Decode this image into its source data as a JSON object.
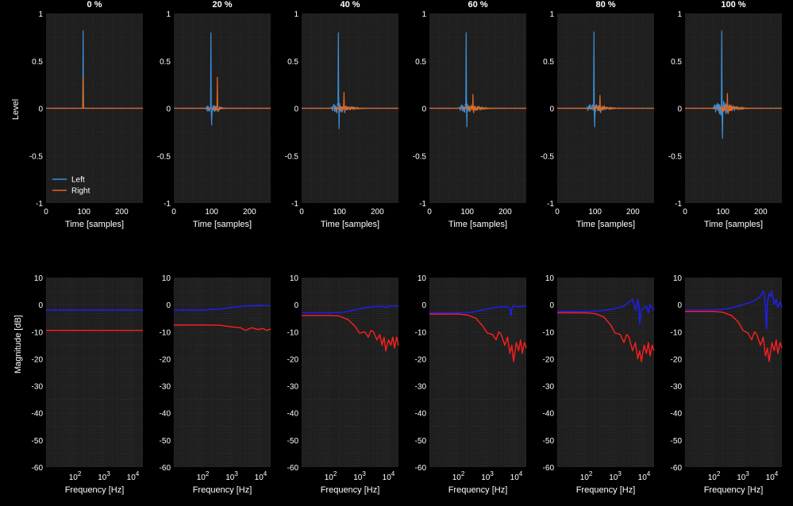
{
  "figure": {
    "background": "#000000",
    "axes_background": "#1f1f1f",
    "grid_color": "#3a3a3a",
    "text_color": "#ffffff",
    "panel_titles": [
      "0 %",
      "20 %",
      "40 %",
      "60 %",
      "80 %",
      "100 %"
    ]
  },
  "chart_data": [
    {
      "type": "line",
      "row": "impulse",
      "ylabel": "Level",
      "xlabel": "Time [samples]",
      "xlim": [
        0,
        256
      ],
      "ylim": [
        -1,
        1
      ],
      "xticks": [
        0,
        100,
        200
      ],
      "yticks": [
        -1,
        -0.5,
        0,
        0.5,
        1
      ],
      "ytick_labels": [
        "-1",
        "-0.5",
        "0",
        "0.5",
        "1"
      ],
      "legend": {
        "placement": "lower-left",
        "entries": [
          "Left",
          "Right"
        ]
      },
      "series_colors": {
        "Left": "#3a8fd8",
        "Right": "#e8671b"
      },
      "panels": [
        {
          "title": "0 %",
          "series": [
            {
              "name": "Left",
              "peak_at": 98,
              "peak": 0.82,
              "neg": 0.0,
              "ringing": 0.0,
              "ring_len": 0
            },
            {
              "name": "Right",
              "peak_at": 98,
              "peak": 0.33,
              "neg": 0.0,
              "ringing": 0.0,
              "ring_len": 0
            }
          ]
        },
        {
          "title": "20 %",
          "series": [
            {
              "name": "Left",
              "peak_at": 98,
              "peak": 0.8,
              "neg": -0.18,
              "ringing": 0.07,
              "ring_len": 40
            },
            {
              "name": "Right",
              "peak_at": 115,
              "peak": 0.33,
              "neg": -0.04,
              "ringing": 0.03,
              "ring_len": 20
            }
          ]
        },
        {
          "title": "40 %",
          "series": [
            {
              "name": "Left",
              "peak_at": 97,
              "peak": 0.8,
              "neg": -0.22,
              "ringing": 0.08,
              "ring_len": 55
            },
            {
              "name": "Right",
              "peak_at": 112,
              "peak": 0.17,
              "neg": -0.05,
              "ringing": 0.04,
              "ring_len": 60
            }
          ]
        },
        {
          "title": "60 %",
          "series": [
            {
              "name": "Left",
              "peak_at": 97,
              "peak": 0.8,
              "neg": -0.2,
              "ringing": 0.07,
              "ring_len": 55
            },
            {
              "name": "Right",
              "peak_at": 115,
              "peak": 0.15,
              "neg": -0.05,
              "ringing": 0.04,
              "ring_len": 60
            }
          ]
        },
        {
          "title": "80 %",
          "series": [
            {
              "name": "Left",
              "peak_at": 97,
              "peak": 0.81,
              "neg": -0.2,
              "ringing": 0.07,
              "ring_len": 55
            },
            {
              "name": "Right",
              "peak_at": 113,
              "peak": 0.14,
              "neg": -0.05,
              "ringing": 0.04,
              "ring_len": 60
            }
          ]
        },
        {
          "title": "100 %",
          "series": [
            {
              "name": "Left",
              "peak_at": 97,
              "peak": 0.82,
              "neg": -0.32,
              "ringing": 0.1,
              "ring_len": 65
            },
            {
              "name": "Right",
              "peak_at": 112,
              "peak": 0.16,
              "neg": -0.06,
              "ringing": 0.05,
              "ring_len": 60
            }
          ]
        }
      ]
    },
    {
      "type": "line",
      "row": "magnitude",
      "ylabel": "Magnitude [dB]",
      "xlabel": "Frequency [Hz]",
      "xscale": "log",
      "xlim": [
        10,
        22050
      ],
      "ylim": [
        -60,
        10
      ],
      "xticks": [
        100,
        1000,
        10000
      ],
      "xtick_labels": [
        [
          "10",
          "2"
        ],
        [
          "10",
          "3"
        ],
        [
          "10",
          "4"
        ]
      ],
      "yticks": [
        10,
        0,
        -10,
        -20,
        -30,
        -40,
        -50,
        -60
      ],
      "series_colors": {
        "Left": "#1f1fff",
        "Right": "#ff1f1f"
      },
      "panels": [
        {
          "title": "0 %",
          "series": [
            {
              "name": "Left",
              "x": [
                10,
                22050
              ],
              "y": [
                -2,
                -2
              ]
            },
            {
              "name": "Right",
              "x": [
                10,
                22050
              ],
              "y": [
                -9.5,
                -9.5
              ]
            }
          ]
        },
        {
          "title": "20 %",
          "series": [
            {
              "name": "Left",
              "x": [
                10,
                100,
                500,
                1000,
                3000,
                10000,
                22050
              ],
              "y": [
                -2,
                -2,
                -1.5,
                -1,
                -0.5,
                -0.3,
                -0.5
              ]
            },
            {
              "name": "Right",
              "x": [
                10,
                100,
                400,
                1000,
                2000,
                3000,
                5000,
                8000,
                12000,
                16000,
                22050
              ],
              "y": [
                -7.5,
                -7.5,
                -7.6,
                -8.2,
                -8.5,
                -9.5,
                -8.5,
                -9.2,
                -8.8,
                -9.5,
                -9
              ]
            }
          ]
        },
        {
          "title": "40 %",
          "series": [
            {
              "name": "Left",
              "x": [
                10,
                100,
                300,
                1000,
                2000,
                3000,
                5000,
                8000,
                12000,
                22050
              ],
              "y": [
                -3,
                -3,
                -2.8,
                -1.5,
                -1,
                -0.8,
                -0.5,
                -1,
                -0.5,
                -0.5
              ]
            },
            {
              "name": "Right",
              "x": [
                10,
                100,
                200,
                400,
                700,
                1000,
                1500,
                2000,
                2500,
                3000,
                4000,
                5000,
                6000,
                7000,
                8000,
                10000,
                12000,
                14000,
                16000,
                19000,
                22050
              ],
              "y": [
                -4,
                -4,
                -4.2,
                -5.5,
                -8,
                -10.5,
                -10,
                -12,
                -9.5,
                -10,
                -13,
                -11,
                -15,
                -12,
                -17,
                -13,
                -15,
                -12,
                -16,
                -12,
                -15
              ]
            }
          ]
        },
        {
          "title": "60 %",
          "series": [
            {
              "name": "Left",
              "x": [
                10,
                100,
                300,
                1000,
                2000,
                3000,
                5000,
                6000,
                6500,
                7000,
                8000,
                12000,
                22050
              ],
              "y": [
                -3,
                -3,
                -2.8,
                -1.6,
                -1,
                -0.8,
                -0.8,
                -1.5,
                -4,
                -1.5,
                -0.5,
                -0.8,
                -0.5
              ]
            },
            {
              "name": "Right",
              "x": [
                10,
                100,
                200,
                400,
                700,
                1000,
                1500,
                2000,
                2500,
                3000,
                4000,
                5000,
                6000,
                7000,
                8000,
                10000,
                12000,
                14000,
                16000,
                19000,
                22050
              ],
              "y": [
                -3.5,
                -3.5,
                -3.8,
                -5,
                -8,
                -10.5,
                -11,
                -13,
                -10,
                -11,
                -15,
                -12,
                -18,
                -15,
                -21,
                -14,
                -17,
                -13,
                -18,
                -14,
                -16
              ]
            }
          ]
        },
        {
          "title": "80 %",
          "series": [
            {
              "name": "Left",
              "x": [
                10,
                100,
                300,
                1000,
                2000,
                3000,
                4000,
                4500,
                5000,
                5500,
                6000,
                6500,
                7000,
                8000,
                10000,
                12000,
                14000,
                16000,
                19000,
                22050
              ],
              "y": [
                -2.5,
                -2.5,
                -2.3,
                -1.5,
                -0.5,
                1,
                2,
                0,
                -2,
                -1,
                2,
                0,
                -7,
                -2,
                -1,
                -0.5,
                -3,
                0,
                -1,
                -2
              ]
            },
            {
              "name": "Right",
              "x": [
                10,
                100,
                200,
                400,
                700,
                1000,
                1500,
                2000,
                2500,
                3000,
                4000,
                5000,
                6000,
                7000,
                8000,
                10000,
                12000,
                14000,
                16000,
                19000,
                22050
              ],
              "y": [
                -3,
                -3,
                -3.3,
                -4.5,
                -7.5,
                -10.5,
                -11,
                -14,
                -11,
                -12,
                -17,
                -14,
                -20,
                -17,
                -21,
                -15,
                -18,
                -14,
                -19,
                -15,
                -17
              ]
            }
          ]
        },
        {
          "title": "100 %",
          "series": [
            {
              "name": "Left",
              "x": [
                10,
                100,
                300,
                700,
                1000,
                2000,
                3000,
                4000,
                5000,
                5500,
                6000,
                6500,
                7000,
                8000,
                9000,
                10000,
                12000,
                14000,
                16000,
                19000,
                22050
              ],
              "y": [
                -2,
                -2,
                -1.5,
                -0.5,
                0,
                1,
                2,
                3,
                5,
                4,
                -2,
                -9,
                1,
                4,
                3,
                5,
                0,
                2,
                -1,
                1,
                -1
              ]
            },
            {
              "name": "Right",
              "x": [
                10,
                100,
                200,
                400,
                700,
                1000,
                1500,
                2000,
                2500,
                3000,
                4000,
                5000,
                6000,
                7000,
                8000,
                10000,
                12000,
                14000,
                16000,
                19000,
                22050
              ],
              "y": [
                -2.5,
                -2.5,
                -2.8,
                -4,
                -6.5,
                -9.5,
                -10.5,
                -13,
                -10,
                -11,
                -15,
                -12,
                -19,
                -16,
                -21,
                -14,
                -17,
                -13,
                -18,
                -14,
                -16
              ]
            }
          ]
        }
      ]
    }
  ]
}
